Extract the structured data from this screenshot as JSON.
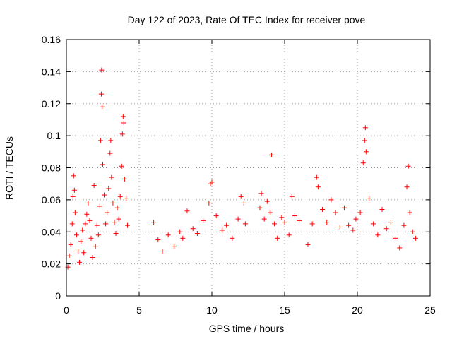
{
  "chart_data": {
    "type": "scatter",
    "title": "Day 122 of 2023, Rate Of TEC Index for receiver pove",
    "xlabel": "GPS time / hours",
    "ylabel": "ROTI / TECUs",
    "xlim": [
      0,
      25
    ],
    "ylim": [
      0,
      0.16
    ],
    "x_ticks": [
      "0",
      "5",
      "10",
      "15",
      "20",
      "25"
    ],
    "y_ticks": [
      "0",
      "0.02",
      "0.04",
      "0.06",
      "0.08",
      "0.1",
      "0.12",
      "0.14",
      "0.16"
    ],
    "grid": true,
    "legend": "none",
    "marker": "+",
    "color": "#ff0000",
    "series": [
      {
        "points": [
          [
            0.1,
            0.018
          ],
          [
            0.2,
            0.025
          ],
          [
            0.3,
            0.032
          ],
          [
            0.4,
            0.045
          ],
          [
            0.45,
            0.062
          ],
          [
            0.5,
            0.075
          ],
          [
            0.55,
            0.066
          ],
          [
            0.6,
            0.052
          ],
          [
            0.7,
            0.038
          ],
          [
            0.8,
            0.028
          ],
          [
            0.9,
            0.021
          ],
          [
            1.0,
            0.034
          ],
          [
            1.1,
            0.041
          ],
          [
            1.2,
            0.027
          ],
          [
            1.3,
            0.045
          ],
          [
            1.4,
            0.051
          ],
          [
            1.5,
            0.058
          ],
          [
            1.6,
            0.047
          ],
          [
            1.7,
            0.036
          ],
          [
            1.8,
            0.024
          ],
          [
            1.9,
            0.069
          ],
          [
            2.0,
            0.031
          ],
          [
            2.1,
            0.044
          ],
          [
            2.2,
            0.038
          ],
          [
            2.3,
            0.056
          ],
          [
            2.35,
            0.097
          ],
          [
            2.4,
            0.126
          ],
          [
            2.42,
            0.141
          ],
          [
            2.45,
            0.118
          ],
          [
            2.5,
            0.082
          ],
          [
            2.6,
            0.063
          ],
          [
            2.7,
            0.045
          ],
          [
            2.8,
            0.052
          ],
          [
            2.9,
            0.067
          ],
          [
            3.0,
            0.089
          ],
          [
            3.05,
            0.097
          ],
          [
            3.1,
            0.074
          ],
          [
            3.2,
            0.058
          ],
          [
            3.3,
            0.046
          ],
          [
            3.4,
            0.039
          ],
          [
            3.5,
            0.055
          ],
          [
            3.6,
            0.048
          ],
          [
            3.7,
            0.062
          ],
          [
            3.8,
            0.081
          ],
          [
            3.85,
            0.101
          ],
          [
            3.9,
            0.112
          ],
          [
            3.95,
            0.108
          ],
          [
            4.0,
            0.073
          ],
          [
            4.1,
            0.061
          ],
          [
            4.2,
            0.044
          ],
          [
            6.0,
            0.046
          ],
          [
            6.3,
            0.035
          ],
          [
            6.6,
            0.028
          ],
          [
            7.0,
            0.038
          ],
          [
            7.4,
            0.031
          ],
          [
            7.8,
            0.04
          ],
          [
            8.0,
            0.036
          ],
          [
            8.3,
            0.053
          ],
          [
            8.7,
            0.042
          ],
          [
            9.0,
            0.039
          ],
          [
            9.4,
            0.047
          ],
          [
            9.8,
            0.058
          ],
          [
            9.9,
            0.07
          ],
          [
            10.0,
            0.071
          ],
          [
            10.3,
            0.05
          ],
          [
            10.7,
            0.041
          ],
          [
            11.0,
            0.044
          ],
          [
            11.4,
            0.036
          ],
          [
            11.8,
            0.048
          ],
          [
            12.0,
            0.062
          ],
          [
            12.2,
            0.058
          ],
          [
            12.3,
            0.045
          ],
          [
            13.3,
            0.055
          ],
          [
            13.4,
            0.064
          ],
          [
            13.6,
            0.048
          ],
          [
            13.8,
            0.059
          ],
          [
            14.0,
            0.052
          ],
          [
            14.1,
            0.088
          ],
          [
            14.3,
            0.045
          ],
          [
            14.5,
            0.036
          ],
          [
            14.8,
            0.049
          ],
          [
            15.0,
            0.046
          ],
          [
            15.3,
            0.038
          ],
          [
            15.5,
            0.062
          ],
          [
            15.7,
            0.05
          ],
          [
            16.0,
            0.047
          ],
          [
            16.6,
            0.032
          ],
          [
            16.9,
            0.045
          ],
          [
            17.2,
            0.074
          ],
          [
            17.3,
            0.068
          ],
          [
            17.6,
            0.054
          ],
          [
            17.9,
            0.046
          ],
          [
            18.2,
            0.06
          ],
          [
            18.5,
            0.052
          ],
          [
            18.8,
            0.043
          ],
          [
            19.1,
            0.055
          ],
          [
            19.4,
            0.044
          ],
          [
            19.7,
            0.041
          ],
          [
            19.9,
            0.048
          ],
          [
            20.2,
            0.052
          ],
          [
            20.4,
            0.083
          ],
          [
            20.5,
            0.097
          ],
          [
            20.55,
            0.105
          ],
          [
            20.6,
            0.09
          ],
          [
            20.8,
            0.061
          ],
          [
            21.1,
            0.045
          ],
          [
            21.4,
            0.038
          ],
          [
            21.7,
            0.054
          ],
          [
            22.0,
            0.042
          ],
          [
            22.3,
            0.046
          ],
          [
            22.6,
            0.036
          ],
          [
            22.9,
            0.03
          ],
          [
            23.2,
            0.044
          ],
          [
            23.4,
            0.068
          ],
          [
            23.5,
            0.081
          ],
          [
            23.6,
            0.052
          ],
          [
            23.8,
            0.04
          ],
          [
            24.0,
            0.036
          ]
        ]
      }
    ]
  }
}
